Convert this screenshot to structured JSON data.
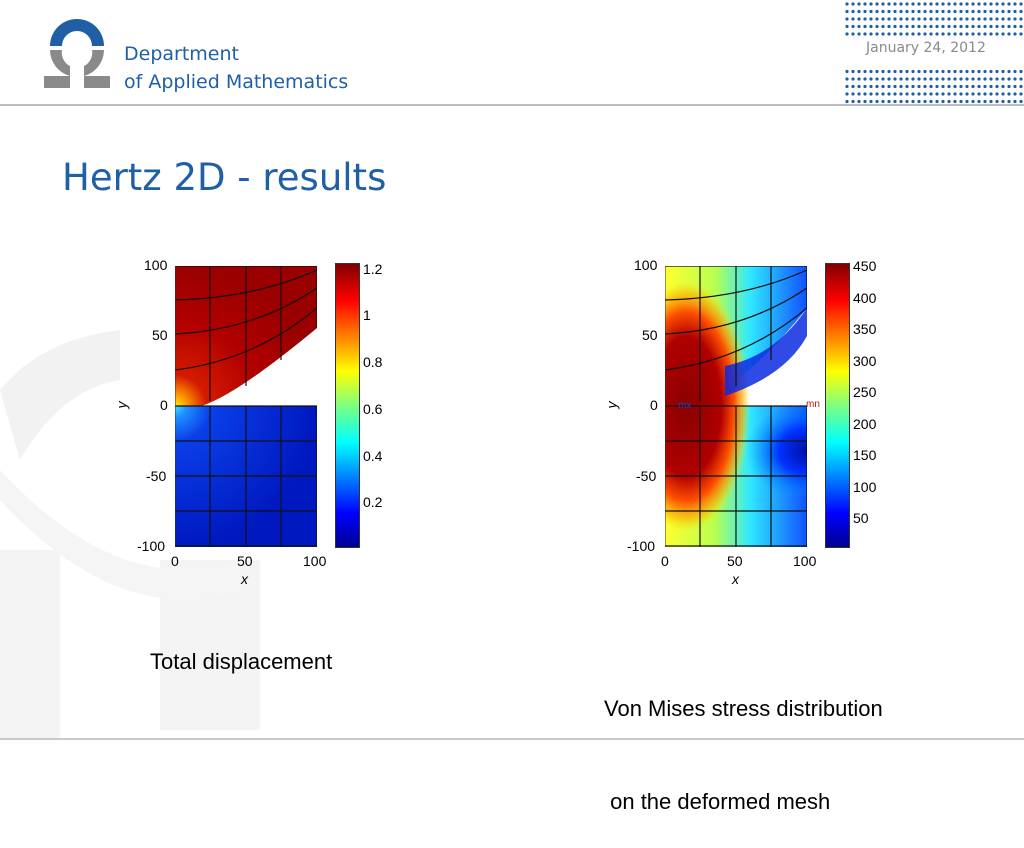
{
  "header": {
    "org_line1": "Department",
    "org_line2": "of Applied Mathematics",
    "date": "January 24, 2012",
    "accent_color": "#1f5fa6"
  },
  "slide": {
    "title": "Hertz 2D - results"
  },
  "figures": [
    {
      "xlabel": "x",
      "ylabel": "y",
      "xticks": [
        "0",
        "50",
        "100"
      ],
      "yticks": [
        "100",
        "50",
        "0",
        "-50",
        "-100"
      ],
      "colorbar_ticks": [
        "1.2",
        "1",
        "0.8",
        "0.6",
        "0.4",
        "0.2"
      ],
      "caption": "Total displacement"
    },
    {
      "xlabel": "x",
      "ylabel": "y",
      "xticks": [
        "0",
        "50",
        "100"
      ],
      "yticks": [
        "100",
        "50",
        "0",
        "-50",
        "-100"
      ],
      "colorbar_ticks": [
        "450",
        "400",
        "350",
        "300",
        "250",
        "200",
        "150",
        "100",
        "50"
      ],
      "marker_max": "mx",
      "marker_min": "mn",
      "caption_line1": "Von Mises stress distribution",
      "caption_line2": " on the deformed mesh"
    }
  ]
}
